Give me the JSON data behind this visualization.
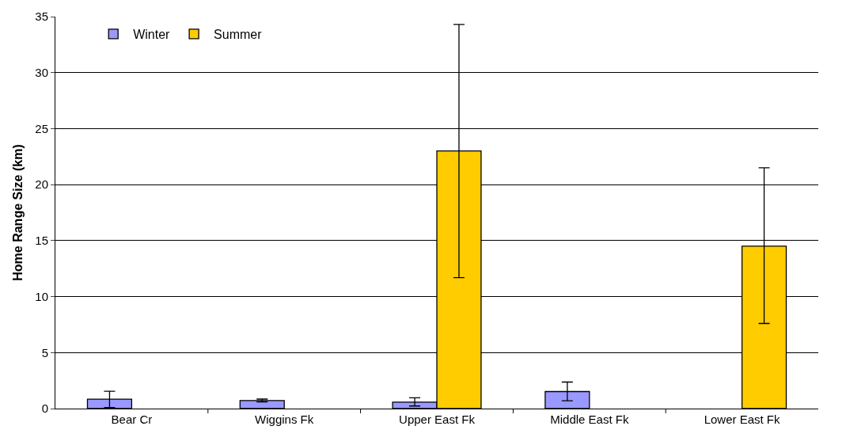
{
  "chart_data": {
    "type": "bar",
    "ylabel": "Home Range Size (km)",
    "categories": [
      "Bear Cr",
      "Wiggins Fk",
      "Upper East Fk",
      "Middle East Fk",
      "Lower East Fk"
    ],
    "series": [
      {
        "name": "Winter",
        "color": "#9999ff",
        "values": [
          0.84,
          0.72,
          0.58,
          1.52,
          null
        ],
        "errors": [
          [
            0.1,
            1.55
          ],
          [
            0.6,
            0.85
          ],
          [
            0.23,
            0.96
          ],
          [
            0.7,
            2.37
          ],
          null
        ]
      },
      {
        "name": "Summer",
        "color": "#ffcc00",
        "values": [
          null,
          null,
          23,
          null,
          14.5
        ],
        "errors": [
          null,
          null,
          [
            11.7,
            34.3
          ],
          null,
          [
            7.6,
            21.5
          ]
        ]
      }
    ],
    "ylim": [
      0,
      35
    ],
    "yticks": [
      0,
      5,
      10,
      15,
      20,
      25,
      30,
      35
    ],
    "grid": "y",
    "legend": "top left"
  }
}
